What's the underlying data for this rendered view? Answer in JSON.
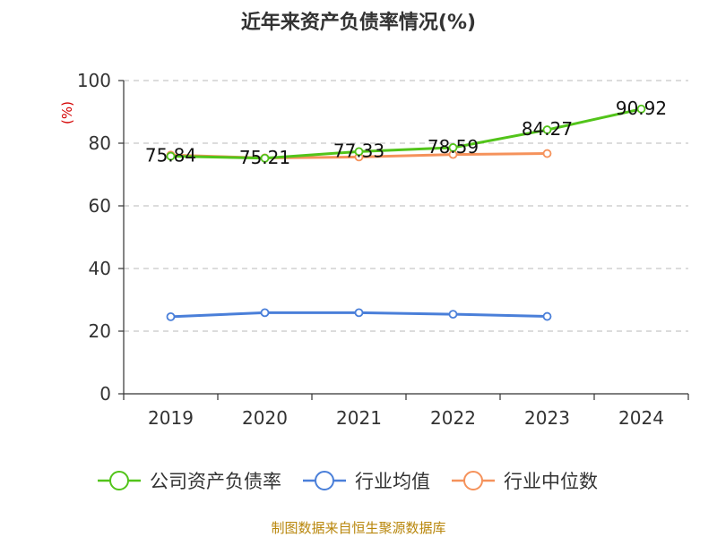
{
  "chart_data": {
    "type": "line",
    "title": "近年来资产负债率情况(%)",
    "ylabel": "(%)",
    "xlabel": "",
    "categories": [
      "2019",
      "2020",
      "2021",
      "2022",
      "2023",
      "2024"
    ],
    "ylim": [
      0,
      100
    ],
    "yticks": [
      0,
      20,
      40,
      60,
      80,
      100
    ],
    "grid": true,
    "legend_position": "bottom",
    "series": [
      {
        "name": "公司资产负债率",
        "color": "#52c41a",
        "values": [
          75.84,
          75.21,
          77.33,
          78.59,
          84.27,
          90.92
        ],
        "show_labels": true
      },
      {
        "name": "行业均值",
        "color": "#4a7fd9",
        "values": [
          24.6,
          25.9,
          25.9,
          25.4,
          24.7,
          null
        ],
        "show_labels": false
      },
      {
        "name": "行业中位数",
        "color": "#f5925b",
        "values": [
          76.2,
          75.3,
          75.6,
          76.4,
          76.7,
          null
        ],
        "show_labels": false
      }
    ],
    "source": "制图数据来自恒生聚源数据库"
  }
}
